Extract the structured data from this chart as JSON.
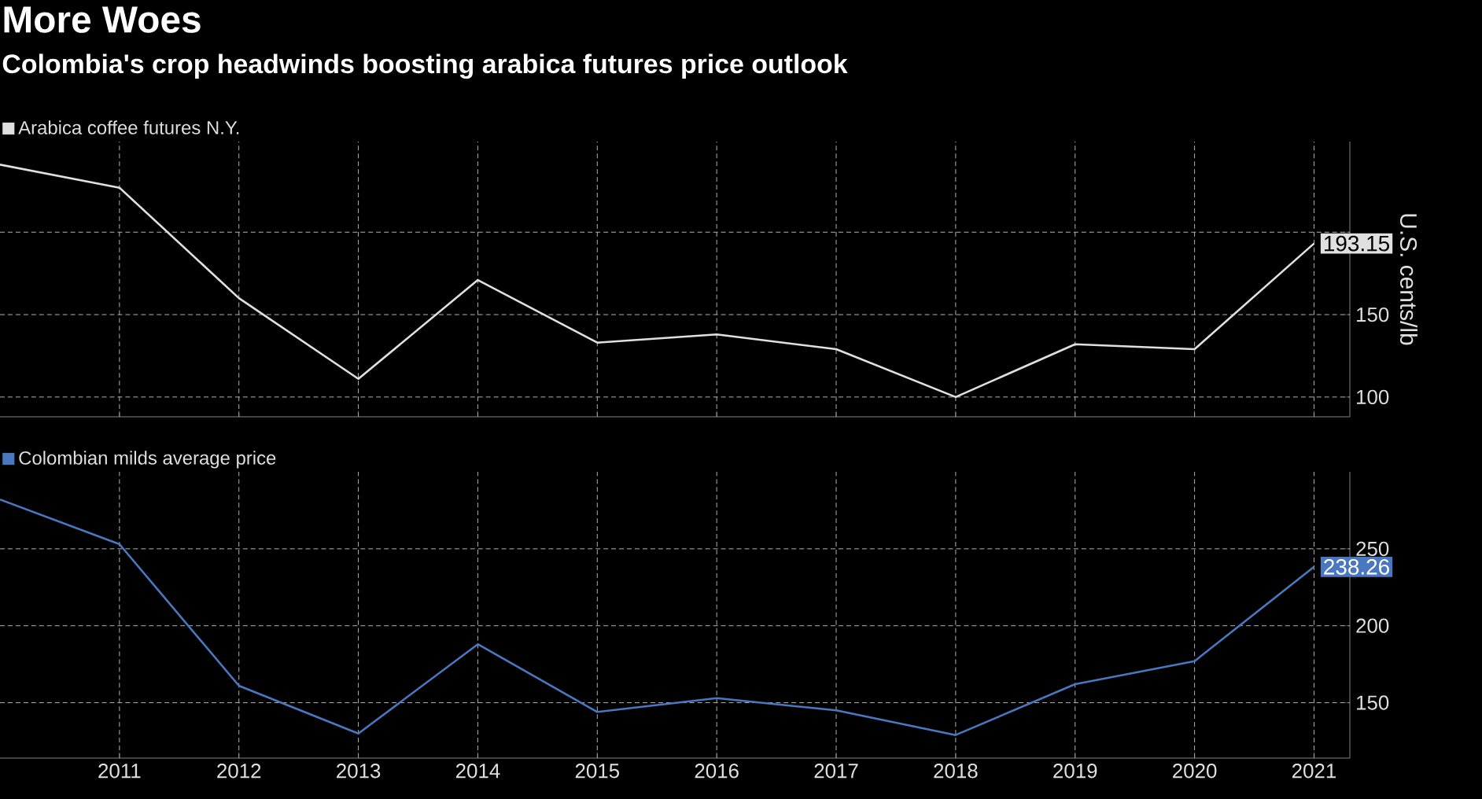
{
  "chart_data": [
    {
      "type": "line",
      "title": "More Woes",
      "subtitle": "Colombia's crop headwinds boosting arabica futures price outlook",
      "x": [
        2010,
        2011,
        2012,
        2013,
        2014,
        2015,
        2016,
        2017,
        2018,
        2019,
        2020,
        2021
      ],
      "series": [
        {
          "name": "Arabica coffee futures N.Y.",
          "color": "#e0e0e0",
          "values": [
            241,
            227,
            160,
            111,
            171,
            133,
            138,
            129,
            100,
            132,
            129,
            193.15
          ],
          "value_labels": [
            null,
            null,
            null,
            null,
            null,
            null,
            null,
            null,
            null,
            null,
            null,
            "193.15"
          ]
        }
      ],
      "xlim": [
        2010,
        2021.3
      ],
      "xticks": [
        2011,
        2012,
        2013,
        2014,
        2015,
        2016,
        2017,
        2018,
        2019,
        2020,
        2021
      ],
      "ylim": [
        88,
        255
      ],
      "yticks": [
        100,
        150,
        {
          "value": 200,
          "label": null
        }
      ],
      "ylabel": "U.S. cents/lb",
      "grid": true,
      "legend": "top left",
      "tick_labels": "y"
    },
    {
      "type": "line",
      "x": [
        2010,
        2011,
        2012,
        2013,
        2014,
        2015,
        2016,
        2017,
        2018,
        2019,
        2020,
        2021
      ],
      "series": [
        {
          "name": "Colombian milds average price",
          "color": "#4a78c0",
          "values": [
            282,
            253,
            161,
            130,
            188,
            144,
            153,
            145,
            129,
            162,
            177,
            238.26
          ],
          "value_labels": [
            null,
            null,
            null,
            null,
            null,
            null,
            null,
            null,
            null,
            null,
            null,
            "238.26"
          ]
        }
      ],
      "xlim": [
        2010,
        2021.3
      ],
      "xticks": [
        2011,
        2012,
        2013,
        2014,
        2015,
        2016,
        2017,
        2018,
        2019,
        2020,
        2021
      ],
      "ylim": [
        114,
        300
      ],
      "yticks": [
        150,
        200,
        250
      ],
      "grid": true,
      "legend": "top left"
    }
  ]
}
